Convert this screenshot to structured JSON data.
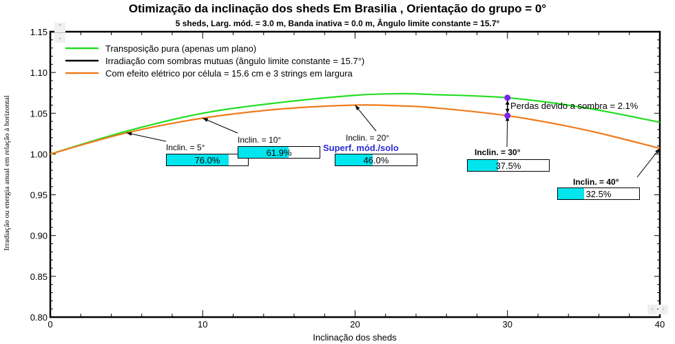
{
  "chart_data": {
    "type": "line",
    "title": "Otimização da inclinação dos sheds Em Brasilia , Orientação do grupo = 0°",
    "subtitle": "5 sheds,  Larg. mód. = 3.0 m, Banda inativa = 0.0 m, Ângulo limite constante = 15.7°",
    "xlabel": "Inclinação dos sheds",
    "ylabel": "Irradiação ou energia anual em relação à horizontal",
    "xlim": [
      0,
      40
    ],
    "ylim": [
      0.8,
      1.15
    ],
    "x_ticks": [
      "0",
      "10",
      "20",
      "30",
      "40"
    ],
    "y_ticks": [
      "0.80",
      "0.85",
      "0.90",
      "0.95",
      "1.00",
      "1.05",
      "1.10",
      "1.15"
    ],
    "grid": false,
    "legend_position": "upper-left-inside",
    "x": [
      0,
      5,
      10,
      15,
      20,
      23,
      25,
      30,
      35,
      40
    ],
    "series": [
      {
        "name": "Transposição pura (apenas um plano)",
        "color": "#22dd22",
        "values": [
          1.0,
          1.028,
          1.05,
          1.063,
          1.072,
          1.074,
          1.073,
          1.069,
          1.057,
          1.039
        ]
      },
      {
        "name": "Irradiação com sombras mutuas (ângulo limite constante = 15.7°)",
        "color": "#000000",
        "values": []
      },
      {
        "name": "Com efeito elétrico por célula = 15.6 cm e 3 strings em largura",
        "color": "#f07a1a",
        "values": [
          1.0,
          1.026,
          1.044,
          1.055,
          1.06,
          1.059,
          1.057,
          1.047,
          1.03,
          1.007
        ]
      }
    ],
    "annotations": [
      {
        "label": "Inclin. = 5°",
        "ground_cover": "76.0%",
        "fill": 0.76,
        "x": 5
      },
      {
        "label": "Inclin. = 10°",
        "ground_cover": "61.9%",
        "fill": 0.619,
        "x": 10
      },
      {
        "label": "Inclin. = 20°",
        "ground_cover": "46.0%",
        "fill": 0.46,
        "x": 20
      },
      {
        "label": "Inclin. = 30°",
        "ground_cover": "37.5%",
        "fill": 0.375,
        "x": 30
      },
      {
        "label": "Inclin. = 40°",
        "ground_cover": "32.5%",
        "fill": 0.325,
        "x": 40
      }
    ],
    "ground_cover_title": "Superf. mód./solo",
    "shading_loss_label": "Perdas devido a sombra = 2.1%",
    "shading_loss_x": 30
  }
}
